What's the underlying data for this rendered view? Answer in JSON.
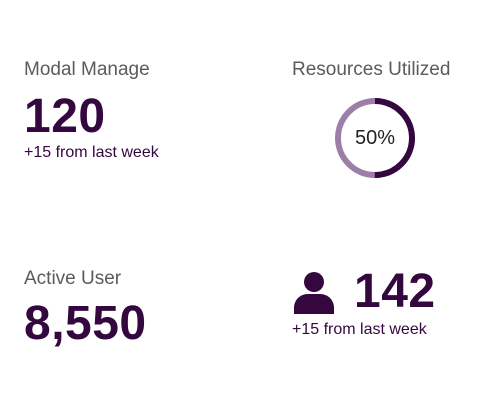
{
  "colors": {
    "primary": "#34073f",
    "ring_track": "#9d7ea8",
    "ring_fill": "#34073f",
    "label": "#5b5b5b"
  },
  "cards": {
    "modal_manage": {
      "label": "Modal Manage",
      "value": "120",
      "delta": "+15 from last week"
    },
    "resources_utilized": {
      "label": "Resources Utilized",
      "percent": 50,
      "percent_label": "50%"
    },
    "active_user": {
      "label": "Active User",
      "value": "8,550"
    },
    "users": {
      "icon": "user-icon",
      "value": "142",
      "delta": "+15 from last week"
    }
  }
}
